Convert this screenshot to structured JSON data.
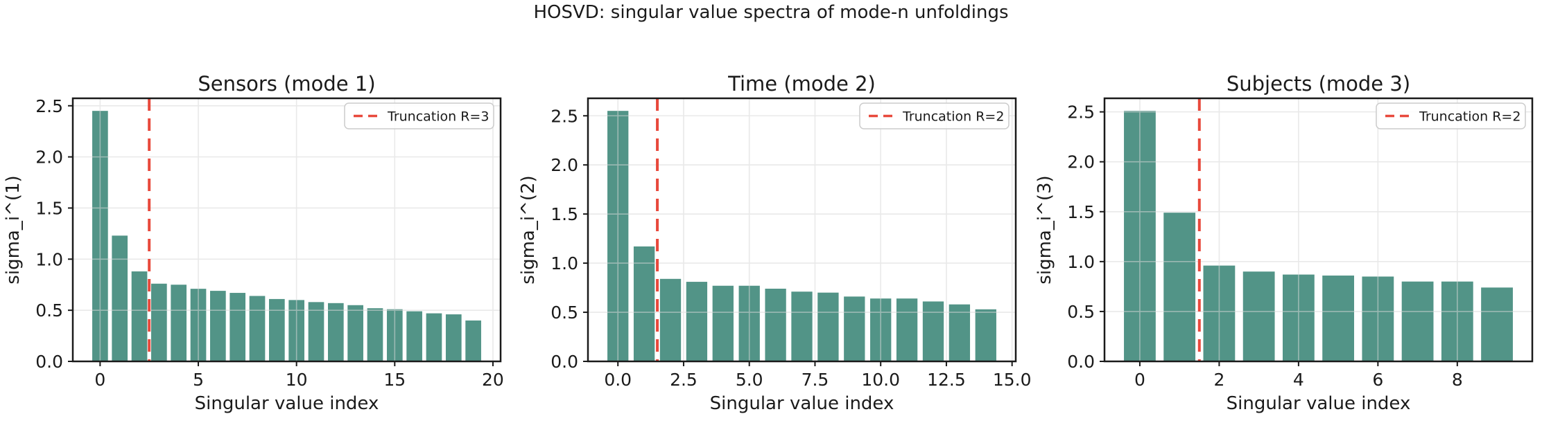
{
  "figure": {
    "suptitle": "HOSVD: singular value spectra of mode-n unfoldings"
  },
  "colors": {
    "bar": "#529487",
    "truncation": "#e8493c",
    "grid": "#d8d8d8",
    "spine": "#1a1a1a",
    "text": "#1a1a1a",
    "legend_border": "#cccccc",
    "background": "#ffffff"
  },
  "chart_data": [
    {
      "type": "bar",
      "title": "Sensors (mode 1)",
      "xlabel": "Singular value index",
      "ylabel": "sigma_i^(1)",
      "x": [
        0,
        1,
        2,
        3,
        4,
        5,
        6,
        7,
        8,
        9,
        10,
        11,
        12,
        13,
        14,
        15,
        16,
        17,
        18,
        19
      ],
      "values": [
        2.45,
        1.23,
        0.88,
        0.76,
        0.75,
        0.71,
        0.69,
        0.67,
        0.64,
        0.61,
        0.6,
        0.58,
        0.57,
        0.55,
        0.52,
        0.51,
        0.49,
        0.47,
        0.46,
        0.4
      ],
      "bar_width": 0.8,
      "xlim": [
        -1.39,
        20.39
      ],
      "ylim": [
        0,
        2.573
      ],
      "xticks": {
        "values": [
          0,
          5,
          10,
          15,
          20
        ],
        "labels": [
          "0",
          "5",
          "10",
          "15",
          "20"
        ]
      },
      "yticks": {
        "values": [
          0,
          0.5,
          1.0,
          1.5,
          2.0,
          2.5
        ],
        "labels": [
          "0.0",
          "0.5",
          "1.0",
          "1.5",
          "2.0",
          "2.5"
        ]
      },
      "grid": true,
      "legend_position": "upper right",
      "truncation": {
        "x": 2.5,
        "R": 3,
        "label": "Truncation R=3"
      }
    },
    {
      "type": "bar",
      "title": "Time (mode 2)",
      "xlabel": "Singular value index",
      "ylabel": "sigma_i^(2)",
      "x": [
        0,
        1,
        2,
        3,
        4,
        5,
        6,
        7,
        8,
        9,
        10,
        11,
        12,
        13,
        14
      ],
      "values": [
        2.55,
        1.17,
        0.84,
        0.81,
        0.77,
        0.77,
        0.74,
        0.71,
        0.7,
        0.66,
        0.64,
        0.64,
        0.61,
        0.58,
        0.53
      ],
      "bar_width": 0.8,
      "xlim": [
        -1.14,
        15.14
      ],
      "ylim": [
        0,
        2.678
      ],
      "xticks": {
        "values": [
          0,
          2.5,
          5,
          7.5,
          10,
          12.5,
          15
        ],
        "labels": [
          "0.0",
          "2.5",
          "5.0",
          "7.5",
          "10.0",
          "12.5",
          "15.0"
        ]
      },
      "yticks": {
        "values": [
          0,
          0.5,
          1.0,
          1.5,
          2.0,
          2.5
        ],
        "labels": [
          "0.0",
          "0.5",
          "1.0",
          "1.5",
          "2.0",
          "2.5"
        ]
      },
      "grid": true,
      "legend_position": "upper right",
      "truncation": {
        "x": 1.5,
        "R": 2,
        "label": "Truncation R=2"
      }
    },
    {
      "type": "bar",
      "title": "Subjects (mode 3)",
      "xlabel": "Singular value index",
      "ylabel": "sigma_i^(3)",
      "x": [
        0,
        1,
        2,
        3,
        4,
        5,
        6,
        7,
        8,
        9
      ],
      "values": [
        2.51,
        1.49,
        0.96,
        0.9,
        0.87,
        0.86,
        0.85,
        0.8,
        0.8,
        0.74
      ],
      "bar_width": 0.8,
      "xlim": [
        -0.89,
        9.89
      ],
      "ylim": [
        0,
        2.636
      ],
      "xticks": {
        "values": [
          0,
          2,
          4,
          6,
          8
        ],
        "labels": [
          "0",
          "2",
          "4",
          "6",
          "8"
        ]
      },
      "yticks": {
        "values": [
          0,
          0.5,
          1.0,
          1.5,
          2.0,
          2.5
        ],
        "labels": [
          "0.0",
          "0.5",
          "1.0",
          "1.5",
          "2.0",
          "2.5"
        ]
      },
      "grid": true,
      "legend_position": "upper right",
      "truncation": {
        "x": 1.5,
        "R": 2,
        "label": "Truncation R=2"
      }
    }
  ]
}
